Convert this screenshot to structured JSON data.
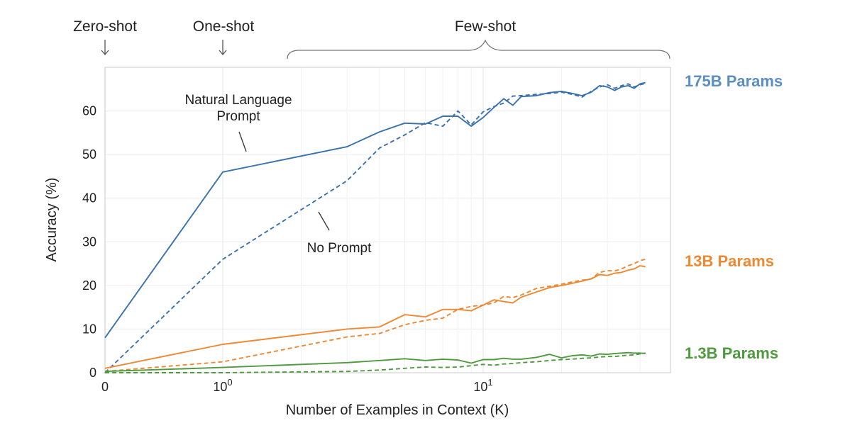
{
  "chart_data": {
    "type": "line",
    "title": "",
    "xlabel": "Number of Examples in Context  (K)",
    "ylabel": "Accuracy (%)",
    "xscale": "symlog",
    "xlim": [
      0,
      42
    ],
    "ylim": [
      0,
      70
    ],
    "yticks": [
      0,
      10,
      20,
      30,
      40,
      50,
      60
    ],
    "ytick_labels": [
      "0",
      "10",
      "20",
      "30",
      "40",
      "50",
      "60"
    ],
    "xticks": [
      {
        "value": 0,
        "base": "0",
        "exp": ""
      },
      {
        "value": 1,
        "base": "10",
        "exp": "0"
      },
      {
        "value": 10,
        "base": "10",
        "exp": "1"
      }
    ],
    "grid": true,
    "shot_labels": {
      "zero": "Zero-shot",
      "one": "One-shot",
      "few": "Few-shot"
    },
    "annotations": {
      "nl_line1": "Natural Language",
      "nl_line2": "Prompt",
      "no_prompt": "No Prompt"
    },
    "series": [
      {
        "model": "175B Params",
        "color": "#3a72ae",
        "style": "solid",
        "x": [
          0,
          1,
          3,
          4,
          5,
          6,
          7,
          8,
          9,
          10,
          11,
          12,
          13,
          14,
          16,
          18,
          20,
          22,
          24,
          26,
          28,
          30,
          32,
          34,
          36,
          38,
          40,
          42
        ],
        "y": [
          8,
          46,
          51.8,
          55.2,
          57.2,
          57,
          58.8,
          58.8,
          56.5,
          58.5,
          60.8,
          62.8,
          61.3,
          63.3,
          63.5,
          64.2,
          64.5,
          64,
          63.5,
          64.3,
          65.8,
          65.5,
          64.7,
          65.5,
          65.8,
          65.2,
          66.2,
          66.5
        ]
      },
      {
        "model": "175B Params",
        "color": "#3a72ae",
        "style": "dashed",
        "x": [
          0,
          1,
          3,
          4,
          5,
          6,
          7,
          8,
          9,
          10,
          11,
          12,
          13,
          14,
          16,
          18,
          20,
          22,
          24,
          26,
          28,
          30,
          32,
          34,
          36,
          38,
          40,
          42
        ],
        "y": [
          0,
          26,
          44,
          51.5,
          54.5,
          57.3,
          56.5,
          60,
          56.8,
          59.8,
          61,
          61.8,
          63.4,
          63.5,
          63.8,
          64,
          64.3,
          63.8,
          63.2,
          64.5,
          65.5,
          66,
          65.2,
          65.8,
          66.2,
          65.5,
          66,
          66.3
        ]
      },
      {
        "model": "13B Params",
        "color": "#ee8833",
        "style": "solid",
        "x": [
          0,
          1,
          3,
          4,
          5,
          6,
          7,
          8,
          9,
          10,
          11,
          12,
          13,
          14,
          16,
          18,
          20,
          22,
          24,
          26,
          28,
          30,
          32,
          34,
          36,
          38,
          40,
          42
        ],
        "y": [
          1,
          6.5,
          10,
          10.5,
          13.3,
          12.8,
          14.5,
          14.5,
          14.2,
          15.5,
          16.7,
          16.3,
          16,
          17.3,
          18.5,
          19.5,
          20,
          20.5,
          21,
          21.5,
          22.5,
          22.3,
          22.8,
          23,
          23.5,
          23.8,
          24.5,
          24.3
        ]
      },
      {
        "model": "13B Params",
        "color": "#ee8833",
        "style": "dashed",
        "x": [
          0,
          1,
          3,
          4,
          5,
          6,
          7,
          8,
          9,
          10,
          11,
          12,
          13,
          14,
          16,
          18,
          20,
          22,
          24,
          26,
          28,
          30,
          32,
          34,
          36,
          38,
          40,
          42
        ],
        "y": [
          0.3,
          2.5,
          8.2,
          9,
          11,
          12,
          12.5,
          14.5,
          15.2,
          15.5,
          16,
          17.5,
          17.2,
          17.8,
          19.3,
          19.8,
          20.3,
          20.8,
          21.2,
          21.5,
          23,
          23.4,
          23.3,
          23.8,
          24.5,
          25,
          25.7,
          26
        ]
      },
      {
        "model": "1.3B Params",
        "color": "#4f9a3e",
        "style": "solid",
        "x": [
          0,
          1,
          3,
          4,
          5,
          6,
          7,
          8,
          9,
          10,
          11,
          12,
          13,
          14,
          16,
          18,
          20,
          22,
          24,
          26,
          28,
          30,
          32,
          34,
          36,
          38,
          40,
          42
        ],
        "y": [
          0.3,
          1.2,
          2.3,
          2.8,
          3.2,
          2.8,
          3.1,
          2.9,
          2.2,
          3.0,
          3.0,
          3.3,
          3.1,
          3.1,
          3.5,
          4.2,
          3.4,
          3.9,
          4.1,
          3.8,
          4.3,
          4.2,
          4.4,
          4.5,
          4.6,
          4.5,
          4.5,
          4.4
        ]
      },
      {
        "model": "1.3B Params",
        "color": "#4f9a3e",
        "style": "dashed",
        "x": [
          0,
          1,
          3,
          4,
          5,
          6,
          7,
          8,
          9,
          10,
          11,
          12,
          13,
          14,
          16,
          18,
          20,
          22,
          24,
          26,
          28,
          30,
          32,
          34,
          36,
          38,
          40,
          42
        ],
        "y": [
          0,
          0,
          0.3,
          0.6,
          1.0,
          1.3,
          1.2,
          1.3,
          1.6,
          1.9,
          1.7,
          2.0,
          2.1,
          2.3,
          2.5,
          2.8,
          3.0,
          3.1,
          3.3,
          3.4,
          3.6,
          3.7,
          3.7,
          3.9,
          4.0,
          4.1,
          4.3,
          4.5
        ]
      }
    ],
    "model_labels": [
      {
        "text": "175B Params",
        "color": "#5b8ec4",
        "anchor_y": 66.5
      },
      {
        "text": "13B Params",
        "color": "#ee8833",
        "anchor_y": 25.5
      },
      {
        "text": "1.3B Params",
        "color": "#4f9a3e",
        "anchor_y": 4.5
      }
    ]
  }
}
